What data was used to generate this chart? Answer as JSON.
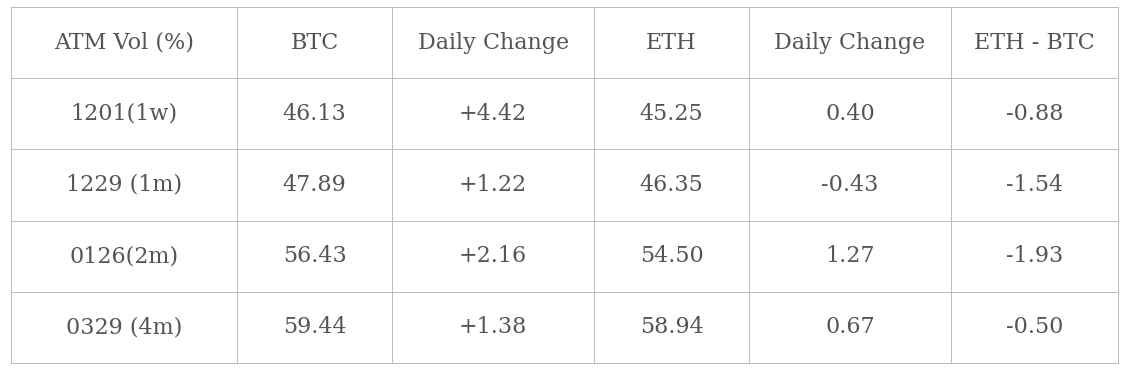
{
  "columns": [
    "ATM Vol (%)",
    "BTC",
    "Daily Change",
    "ETH",
    "Daily Change",
    "ETH - BTC"
  ],
  "rows": [
    [
      "1201(1w)",
      "46.13",
      "+4.42",
      "45.25",
      "0.40",
      "-0.88"
    ],
    [
      "1229 (1m)",
      "47.89",
      "+1.22",
      "46.35",
      "-0.43",
      "-1.54"
    ],
    [
      "0126(2m)",
      "56.43",
      "+2.16",
      "54.50",
      "1.27",
      "-1.93"
    ],
    [
      "0329 (4m)",
      "59.44",
      "+1.38",
      "58.94",
      "0.67",
      "-0.50"
    ]
  ],
  "bg_color": "#ffffff",
  "text_color": "#555555",
  "grid_color": "#bbbbbb",
  "font_size": 16,
  "col_widths": [
    1.9,
    1.3,
    1.7,
    1.3,
    1.7,
    1.4
  ],
  "fig_width": 11.29,
  "fig_height": 3.7,
  "dpi": 100
}
